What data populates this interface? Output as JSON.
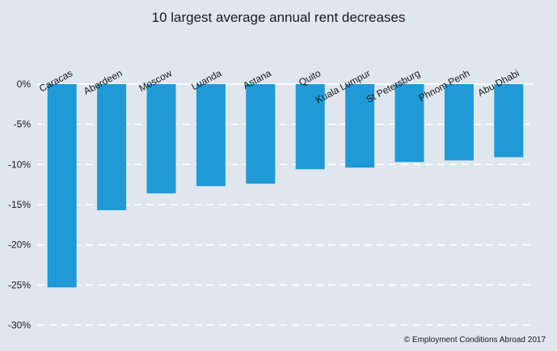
{
  "chart_data": {
    "type": "bar",
    "title": "10 largest average annual rent decreases",
    "categories": [
      "Caracas",
      "Aberdeen",
      "Moscow",
      "Luanda",
      "Astana",
      "Quito",
      "Kuala Lumpur",
      "St Petersburg",
      "Phnom Penh",
      "Abu Dhabi"
    ],
    "values": [
      -25.3,
      -15.7,
      -13.6,
      -12.7,
      -12.4,
      -10.6,
      -10.4,
      -9.7,
      -9.5,
      -9.1
    ],
    "ylim": [
      -30,
      0
    ],
    "yticks": [
      0,
      -5,
      -10,
      -15,
      -20,
      -25,
      -30
    ],
    "ytick_labels": [
      "0%",
      "-5%",
      "-10%",
      "-15%",
      "-20%",
      "-25%",
      "-30%"
    ],
    "xlabel": "",
    "ylabel": "",
    "grid": true,
    "bar_color": "#1f9ad6"
  },
  "credit": "© Employment Conditions Abroad 2017"
}
